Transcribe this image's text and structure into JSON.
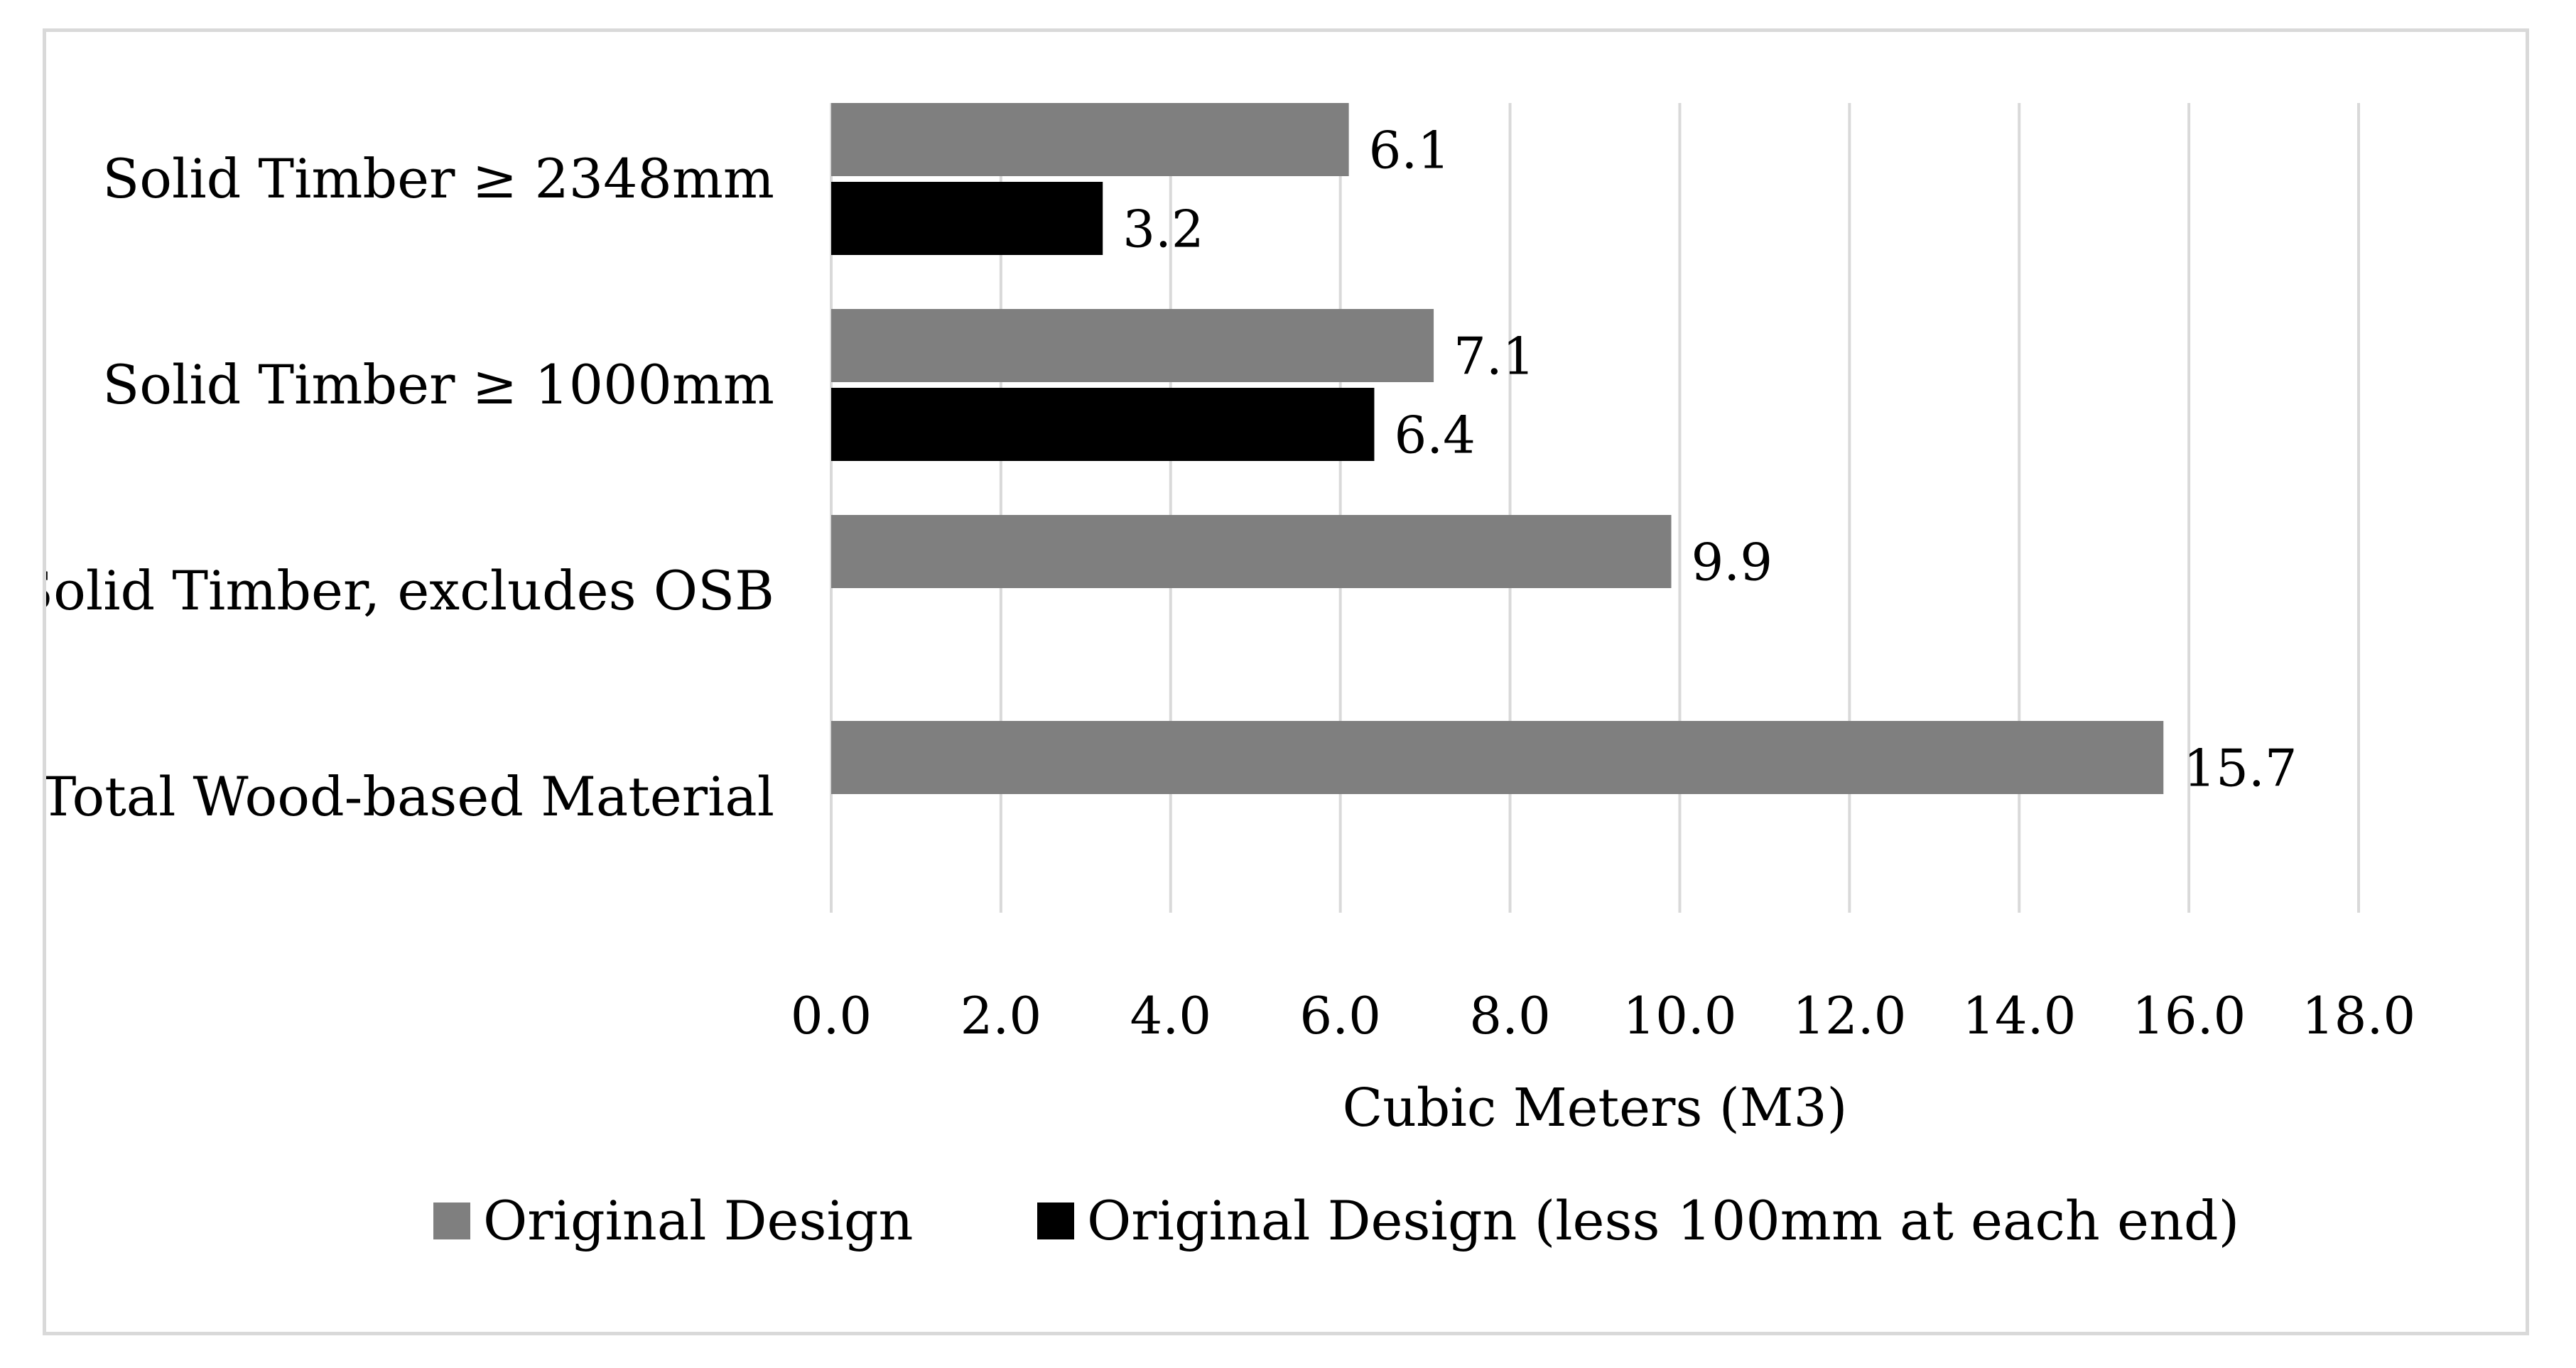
{
  "chart_data": {
    "type": "bar",
    "orientation": "horizontal",
    "title": "",
    "xlabel": "Cubic Meters (M3)",
    "ylabel": "",
    "xlim": [
      0,
      18
    ],
    "x_ticks": [
      "0.0",
      "2.0",
      "4.0",
      "6.0",
      "8.0",
      "10.0",
      "12.0",
      "14.0",
      "16.0",
      "18.0"
    ],
    "x_tick_values": [
      0,
      2,
      4,
      6,
      8,
      10,
      12,
      14,
      16,
      18
    ],
    "grid": true,
    "legend_position": "bottom",
    "categories": [
      "Solid Timber  ≥ 2348mm",
      "Solid Timber ≥ 1000mm",
      "Solid Timber, excludes OSB",
      "Total Wood-based Material"
    ],
    "series": [
      {
        "name": "Original Design",
        "color": "#7f7f7f",
        "values": [
          6.1,
          7.1,
          9.9,
          15.7
        ],
        "labels": [
          "6.1",
          "7.1",
          "9.9",
          "15.7"
        ]
      },
      {
        "name": "Original Design (less 100mm at each end)",
        "color": "#000000",
        "values": [
          3.2,
          6.4,
          null,
          null
        ],
        "labels": [
          "3.2",
          "6.4",
          "",
          ""
        ]
      }
    ],
    "gridline_color": "#d9d9d9",
    "frame_color": "#d9d9d9"
  }
}
